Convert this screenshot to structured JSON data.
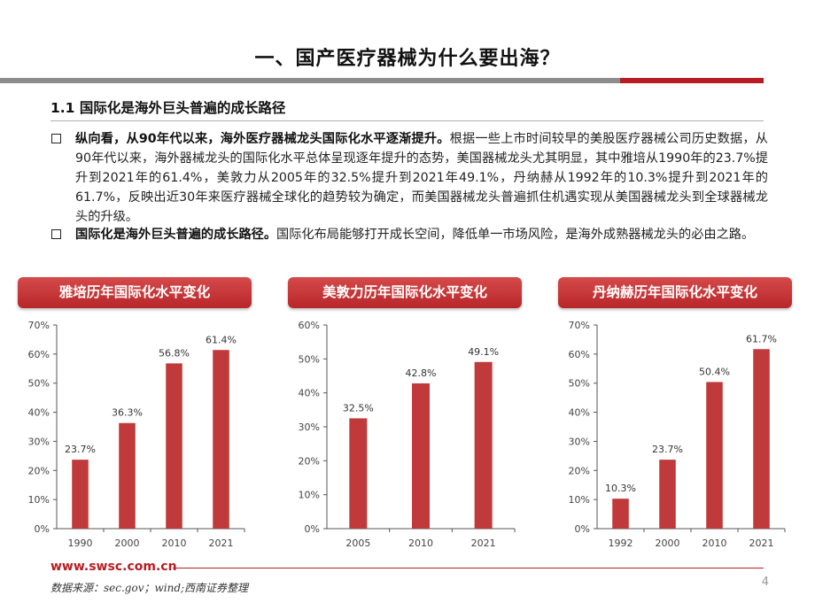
{
  "slide": {
    "title": "一、国产医疗器械为什么要出海？",
    "section_heading": "1.1 国际化是海外巨头普遍的成长路径",
    "bullets": [
      {
        "bold": "纵向看，从90年代以来，海外医疗器械龙头国际化水平逐渐提升。",
        "text": "根据一些上市时间较早的美股医疗器械公司历史数据，从90年代以来，海外器械龙头的国际化水平总体呈现逐年提升的态势，美国器械龙头尤其明显，其中雅培从1990年的23.7%提升到2021年的61.4%，美敦力从2005年的32.5%提升到2021年49.1%，丹纳赫从1992年的10.3%提升到2021年的61.7%，反映出近30年来医疗器械全球化的趋势较为确定，而美国器械龙头普遍抓住机遇实现从美国器械龙头到全球器械龙头的升级。"
      },
      {
        "bold": "国际化是海外巨头普遍的成长路径。",
        "text": "国际化布局能够打开成长空间，降低单一市场风险，是海外成熟器械龙头的必由之路。"
      }
    ],
    "footer_url": "www.swsc.com.cn",
    "footer_source": "数据来源：sec.gov；wind;西南证券整理",
    "page_number": "4"
  },
  "colors": {
    "accent": "#b81c22",
    "bar": "#c0393b",
    "axis": "#555555"
  },
  "chart_data": [
    {
      "type": "bar",
      "title": "雅培历年国际化水平变化",
      "categories": [
        "1990",
        "2000",
        "2010",
        "2021"
      ],
      "values": [
        23.7,
        36.3,
        56.8,
        61.4
      ],
      "data_labels": [
        "23.7%",
        "36.3%",
        "56.8%",
        "61.4%"
      ],
      "ylim": [
        0,
        70
      ],
      "yticks": [
        "0%",
        "10%",
        "20%",
        "30%",
        "40%",
        "50%",
        "60%",
        "70%"
      ],
      "grid": false,
      "legend": "none",
      "xlabel": "",
      "ylabel": ""
    },
    {
      "type": "bar",
      "title": "美敦力历年国际化水平变化",
      "categories": [
        "2005",
        "2010",
        "2021"
      ],
      "values": [
        32.5,
        42.8,
        49.1
      ],
      "data_labels": [
        "32.5%",
        "42.8%",
        "49.1%"
      ],
      "ylim": [
        0,
        60
      ],
      "yticks": [
        "0%",
        "10%",
        "20%",
        "30%",
        "40%",
        "50%",
        "60%"
      ],
      "grid": false,
      "legend": "none",
      "xlabel": "",
      "ylabel": ""
    },
    {
      "type": "bar",
      "title": "丹纳赫历年国际化水平变化",
      "categories": [
        "1992",
        "2000",
        "2010",
        "2021"
      ],
      "values": [
        10.3,
        23.7,
        50.4,
        61.7
      ],
      "data_labels": [
        "10.3%",
        "23.7%",
        "50.4%",
        "61.7%"
      ],
      "ylim": [
        0,
        70
      ],
      "yticks": [
        "0%",
        "10%",
        "20%",
        "30%",
        "40%",
        "50%",
        "60%",
        "70%"
      ],
      "grid": false,
      "legend": "none",
      "xlabel": "",
      "ylabel": ""
    }
  ]
}
